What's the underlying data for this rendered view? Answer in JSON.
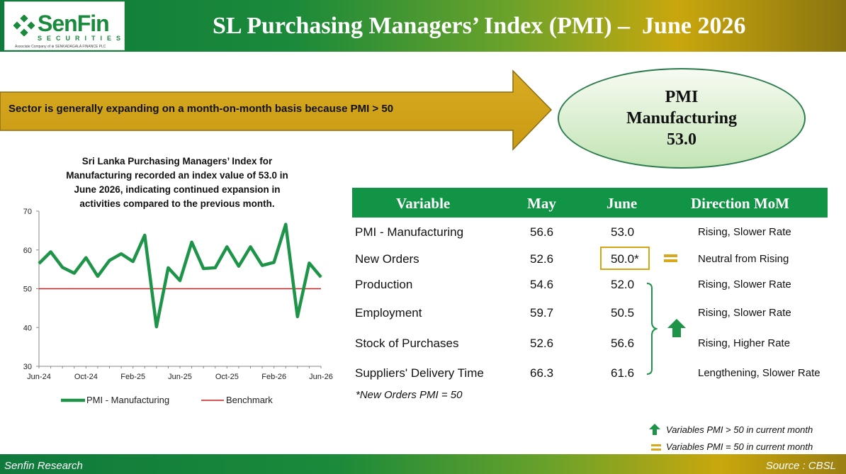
{
  "header": {
    "logo_name": "SenFin",
    "logo_securities": "SECURITIES",
    "logo_subtext": "Associate Company of ⊕ SENKADAGALA FINANCE PLC",
    "title": "SL Purchasing Managers’ Index (PMI) –  June 2026"
  },
  "banner": {
    "text": "Sector is generally expanding on a month-on-month basis because PMI > 50"
  },
  "ellipse": {
    "line1": "PMI",
    "line2": "Manufacturing",
    "line3": "53.0"
  },
  "chart_title": {
    "line1": "Sri Lanka Purchasing Managers’ Index for",
    "line2": "Manufacturing recorded an index value of 53.0 in",
    "line3": "June 2026, indicating continued expansion in",
    "line4": "activities compared to the previous month."
  },
  "chart_data": {
    "type": "line",
    "x": [
      "Jun-24",
      "Jul-24",
      "Aug-24",
      "Sep-24",
      "Oct-24",
      "Nov-24",
      "Dec-24",
      "Jan-25",
      "Feb-25",
      "Mar-25",
      "Apr-25",
      "May-25",
      "Jun-25",
      "Jul-25",
      "Aug-25",
      "Sep-25",
      "Oct-25",
      "Nov-25",
      "Dec-25",
      "Jan-26",
      "Feb-26",
      "Mar-26",
      "Apr-26",
      "May-26",
      "Jun-26"
    ],
    "x_tick_labels": [
      "Jun-24",
      "Oct-24",
      "Feb-25",
      "Jun-25",
      "Oct-25",
      "Feb-26",
      "Jun-26"
    ],
    "series": [
      {
        "name": "PMI - Manufacturing",
        "color": "#1e9448",
        "values": [
          56.5,
          59.5,
          55.5,
          54.0,
          58.0,
          53.2,
          57.3,
          59.0,
          57.0,
          63.8,
          40.2,
          55.4,
          52.1,
          62.0,
          55.2,
          55.4,
          60.8,
          55.8,
          60.8,
          56.0,
          56.8,
          66.6,
          42.8,
          56.6,
          53.0
        ]
      },
      {
        "name": "Benchmark",
        "color": "#cc1f1f",
        "values": [
          50,
          50,
          50,
          50,
          50,
          50,
          50,
          50,
          50,
          50,
          50,
          50,
          50,
          50,
          50,
          50,
          50,
          50,
          50,
          50,
          50,
          50,
          50,
          50,
          50
        ]
      }
    ],
    "y_ticks": [
      "70",
      "60",
      "50",
      "40",
      "30"
    ],
    "ylim": [
      30,
      70
    ],
    "legend": [
      "PMI - Manufacturing",
      "Benchmark"
    ],
    "legend_position": "bottom",
    "grid": false
  },
  "table": {
    "headers": [
      "Variable",
      "May",
      "June",
      "Direction MoM"
    ],
    "rows": [
      {
        "variable": "PMI - Manufacturing",
        "may": "56.6",
        "june": "53.0",
        "direction": "Rising, Slower Rate"
      },
      {
        "variable": "New Orders",
        "may": "52.6",
        "june": "50.0*",
        "direction": "Neutral from Rising"
      },
      {
        "variable": "Production",
        "may": "54.6",
        "june": "52.0",
        "direction": "Rising, Slower Rate"
      },
      {
        "variable": "Employment",
        "may": "59.7",
        "june": "50.5",
        "direction": "Rising, Slower Rate"
      },
      {
        "variable": "Stock of Purchases",
        "may": "52.6",
        "june": "56.6",
        "direction": "Rising, Higher Rate"
      },
      {
        "variable": "Suppliers' Delivery Time",
        "may": "66.3",
        "june": "61.6",
        "direction": "Lengthening, Slower Rate"
      }
    ],
    "footnote": "*New Orders PMI = 50"
  },
  "legend_right": {
    "up_text": "Variables PMI > 50 in current month",
    "eq_text": "Variables PMI = 50 in current month"
  },
  "footer": {
    "left": "Senfin Research",
    "right": "Source : CBSL"
  },
  "colors": {
    "brand_green": "#129447",
    "gold": "#d9a81c",
    "benchmark_red": "#cc1f1f"
  }
}
